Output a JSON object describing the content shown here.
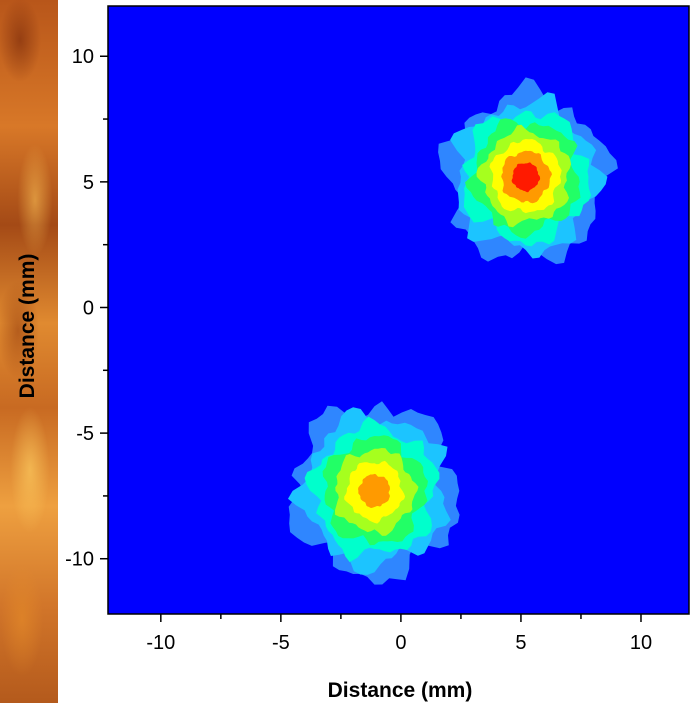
{
  "chart_data": {
    "type": "heatmap",
    "title": "",
    "xlabel": "Distance (mm)",
    "ylabel": "Distance (mm)",
    "xlim": [
      -12.2,
      12
    ],
    "ylim": [
      -12.2,
      12
    ],
    "x_ticks": [
      -10,
      -5,
      0,
      5,
      10
    ],
    "y_ticks": [
      -10,
      -5,
      0,
      5,
      10
    ],
    "x_tick_labels": [
      "-10",
      "-5",
      "0",
      "5",
      "10"
    ],
    "y_tick_labels": [
      "-10",
      "-5",
      "0",
      "5",
      "10"
    ],
    "grid": false,
    "legend": "none",
    "background_color": "#0000ff",
    "contour_levels": [
      {
        "level": 1,
        "color": "#2f86ff"
      },
      {
        "level": 2,
        "color": "#1cc4ff"
      },
      {
        "level": 3,
        "color": "#00ffcc"
      },
      {
        "level": 4,
        "color": "#22ff66"
      },
      {
        "level": 5,
        "color": "#a6ff1e"
      },
      {
        "level": 6,
        "color": "#ffff00"
      },
      {
        "level": 7,
        "color": "#ff9a00"
      },
      {
        "level": 8,
        "color": "#ff1a00"
      }
    ],
    "spots": [
      {
        "name": "spot-upper-right",
        "x": 5.2,
        "y": 5.2,
        "radius": 3.3,
        "peak_level": 8
      },
      {
        "name": "spot-lower-left",
        "x": -1.1,
        "y": -7.3,
        "radius": 3.4,
        "peak_level": 7
      }
    ]
  }
}
